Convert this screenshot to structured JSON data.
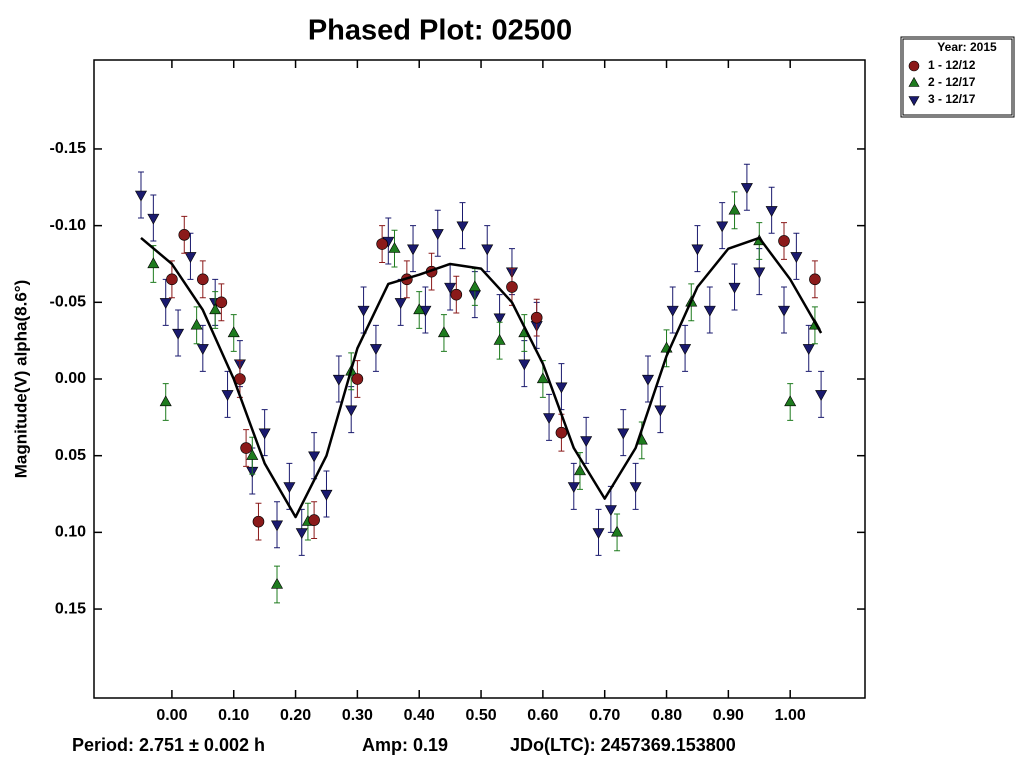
{
  "chart_data": {
    "type": "scatter",
    "title": "Phased Plot: 02500",
    "y_label": "Magnitude(V) alpha(8.6°)",
    "annotations": [
      "Period: 2.751 ± 0.002 h",
      "Amp: 0.19",
      "JDo(LTC): 2457369.153800"
    ],
    "legend_title": "Year: 2015",
    "legend_position": "outside-top-right",
    "xlim": [
      -0.126,
      1.121
    ],
    "ylim": [
      -0.208,
      0.208
    ],
    "y_inverted": true,
    "xticks": [
      {
        "value": 0,
        "label": "0.00"
      },
      {
        "value": 0.1,
        "label": "0.10"
      },
      {
        "value": 0.2,
        "label": "0.20"
      },
      {
        "value": 0.3,
        "label": "0.30"
      },
      {
        "value": 0.4,
        "label": "0.40"
      },
      {
        "value": 0.5,
        "label": "0.50"
      },
      {
        "value": 0.6,
        "label": "0.60"
      },
      {
        "value": 0.7,
        "label": "0.70"
      },
      {
        "value": 0.8,
        "label": "0.80"
      },
      {
        "value": 0.9,
        "label": "0.90"
      },
      {
        "value": 1,
        "label": "1.00"
      }
    ],
    "yticks": [
      -0.15,
      {
        "value": -0.1,
        "label": "-0.10"
      },
      -0.05,
      {
        "value": 0,
        "label": "0.00"
      },
      0.05,
      {
        "value": 0.1,
        "label": "0.10"
      },
      0.15
    ],
    "series": [
      {
        "name": "1 - 12/12",
        "color": "#8b1a1a",
        "marker": "circle",
        "error": 0.012,
        "x": [
          0.0,
          0.02,
          0.05,
          0.08,
          0.11,
          0.12,
          0.14,
          0.23,
          0.3,
          0.34,
          0.38,
          0.42,
          0.46,
          0.55,
          0.59,
          0.63,
          0.99,
          1.04
        ],
        "values": [
          -0.065,
          -0.094,
          -0.065,
          -0.05,
          0.0,
          0.045,
          0.093,
          0.092,
          0.0,
          -0.088,
          -0.065,
          -0.07,
          -0.055,
          -0.06,
          -0.04,
          0.035,
          -0.09,
          -0.065
        ]
      },
      {
        "name": "2 - 12/17",
        "color": "#1e7b1e",
        "marker": "triangle-up",
        "error": 0.012,
        "x": [
          -0.03,
          -0.01,
          0.04,
          0.07,
          0.1,
          0.13,
          0.17,
          0.22,
          0.29,
          0.36,
          0.4,
          0.44,
          0.49,
          0.53,
          0.57,
          0.6,
          0.66,
          0.72,
          0.76,
          0.8,
          0.84,
          0.91,
          0.95,
          1.0,
          1.04
        ],
        "values": [
          -0.075,
          0.015,
          -0.035,
          -0.045,
          -0.03,
          0.05,
          0.134,
          0.093,
          -0.005,
          -0.085,
          -0.045,
          -0.03,
          -0.06,
          -0.025,
          -0.03,
          0.0,
          0.06,
          0.1,
          0.04,
          -0.02,
          -0.05,
          -0.11,
          -0.09,
          0.015,
          -0.035
        ]
      },
      {
        "name": "3 - 12/17",
        "color": "#1a1a6e",
        "marker": "triangle-down",
        "error": 0.015,
        "x": [
          -0.05,
          -0.03,
          -0.01,
          0.01,
          0.03,
          0.05,
          0.07,
          0.09,
          0.11,
          0.13,
          0.15,
          0.17,
          0.19,
          0.21,
          0.23,
          0.25,
          0.27,
          0.29,
          0.31,
          0.33,
          0.35,
          0.37,
          0.39,
          0.41,
          0.43,
          0.45,
          0.47,
          0.49,
          0.51,
          0.53,
          0.55,
          0.57,
          0.59,
          0.61,
          0.63,
          0.65,
          0.67,
          0.69,
          0.71,
          0.73,
          0.75,
          0.77,
          0.79,
          0.81,
          0.83,
          0.85,
          0.87,
          0.89,
          0.91,
          0.93,
          0.95,
          0.97,
          0.99,
          1.01,
          1.03,
          1.05
        ],
        "values": [
          -0.12,
          -0.105,
          -0.05,
          -0.03,
          -0.08,
          -0.02,
          -0.05,
          0.01,
          -0.01,
          0.06,
          0.035,
          0.095,
          0.07,
          0.1,
          0.05,
          0.075,
          0.0,
          0.02,
          -0.045,
          -0.02,
          -0.09,
          -0.05,
          -0.085,
          -0.045,
          -0.095,
          -0.06,
          -0.1,
          -0.055,
          -0.085,
          -0.04,
          -0.07,
          -0.01,
          -0.035,
          0.025,
          0.005,
          0.07,
          0.04,
          0.1,
          0.085,
          0.035,
          0.07,
          0.0,
          0.02,
          -0.045,
          -0.02,
          -0.085,
          -0.045,
          -0.1,
          -0.06,
          -0.125,
          -0.07,
          -0.11,
          -0.045,
          -0.08,
          -0.02,
          0.01
        ]
      }
    ],
    "fit": {
      "color": "#000000",
      "x": [
        -0.05,
        0.0,
        0.05,
        0.1,
        0.15,
        0.2,
        0.25,
        0.3,
        0.35,
        0.4,
        0.45,
        0.5,
        0.55,
        0.6,
        0.65,
        0.7,
        0.75,
        0.8,
        0.85,
        0.9,
        0.95,
        1.0,
        1.05
      ],
      "values": [
        -0.092,
        -0.075,
        -0.045,
        0.0,
        0.055,
        0.09,
        0.05,
        -0.02,
        -0.062,
        -0.068,
        -0.075,
        -0.072,
        -0.05,
        -0.01,
        0.045,
        0.078,
        0.045,
        -0.015,
        -0.06,
        -0.085,
        -0.092,
        -0.065,
        -0.03
      ]
    }
  }
}
